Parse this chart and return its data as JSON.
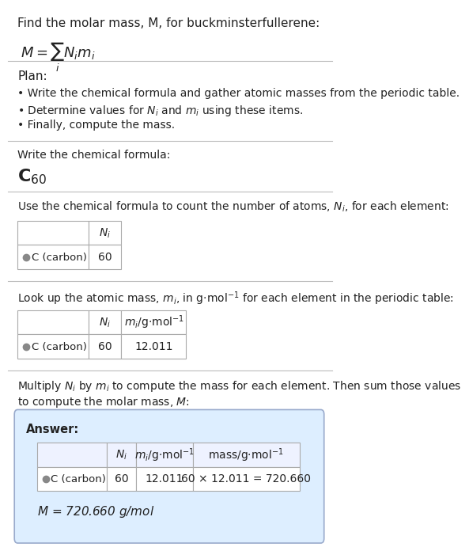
{
  "title_line1": "Find the molar mass, M, for buckminsterfullerene:",
  "title_formula": "$M = \\sum_i N_i m_i$",
  "plan_header": "Plan:",
  "plan_bullets": [
    "• Write the chemical formula and gather atomic masses from the periodic table.",
    "• Determine values for $N_i$ and $m_i$ using these items.",
    "• Finally, compute the mass."
  ],
  "step1_header": "Write the chemical formula:",
  "step1_formula": "$\\mathbf{C}_{60}$",
  "step2_header": "Use the chemical formula to count the number of atoms, $N_i$, for each element:",
  "step3_header": "Look up the atomic mass, $m_i$, in g·mol$^{-1}$ for each element in the periodic table:",
  "step4_header_line1": "Multiply $N_i$ by $m_i$ to compute the mass for each element. Then sum those values",
  "step4_header_line2": "to compute the molar mass, $M$:",
  "answer_label": "Answer:",
  "answer_final": "$M$ = 720.660 g/mol",
  "bg_color": "#ffffff",
  "answer_box_color": "#ddeeff",
  "text_color": "#222222",
  "dot_color": "#888888",
  "separator_color": "#bbbbbb"
}
